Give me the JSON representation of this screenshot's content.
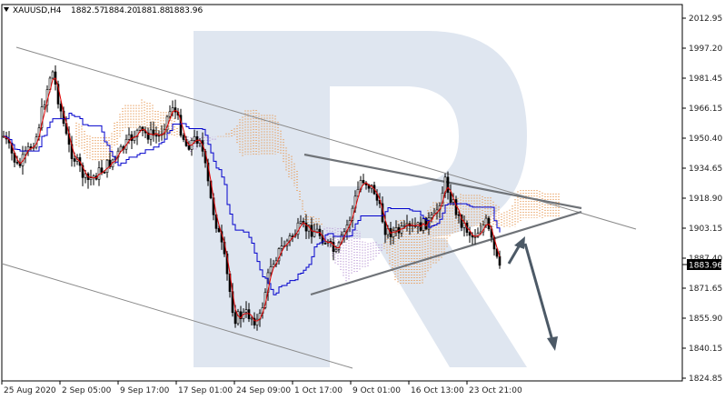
{
  "header": {
    "symbol": "XAUUSD,H4",
    "open": "1882.57",
    "high": "1884.20",
    "low": "1881.88",
    "close": "1883.96"
  },
  "current_price_label": "1883.96",
  "colors": {
    "candle": "#000000",
    "ma_red": "#e00000",
    "ma_blue": "#0000cc",
    "cloud_orange": "#e8a060",
    "cloud_violet": "#c0a0d8",
    "trendline": "#7a7a7a",
    "arrow": "#4c5966",
    "watermark": "#dfe6f0"
  },
  "chart_data": {
    "type": "candlestick",
    "symbol": "XAUUSD",
    "timeframe": "H4",
    "price_axis": [
      "2012.95",
      "1997.20",
      "1981.45",
      "1966.15",
      "1950.40",
      "1934.65",
      "1918.90",
      "1903.15",
      "1887.40",
      "1871.65",
      "1855.90",
      "1840.15",
      "1824.85"
    ],
    "time_axis": [
      "25 Aug 2020",
      "2 Sep 05:00",
      "9 Sep 17:00",
      "17 Sep 01:00",
      "24 Sep 09:00",
      "1 Oct 17:00",
      "9 Oct 01:00",
      "16 Oct 13:00",
      "23 Oct 21:00"
    ],
    "ylim": [
      1824.85,
      2012.95
    ],
    "last_price": 1883.96
  }
}
